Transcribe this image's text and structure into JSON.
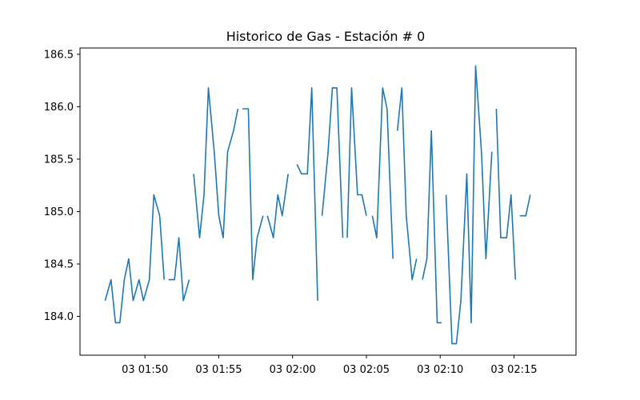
{
  "chart_data": {
    "type": "line",
    "title": "Historico de Gas - Estación # 0",
    "xlabel": "",
    "ylabel": "",
    "x_is_time": true,
    "xlim_minutes": [
      45.6,
      79.2
    ],
    "ylim": [
      183.63,
      186.56
    ],
    "grid": false,
    "legend": "none",
    "line_color": "#1f77b4",
    "x_ticks": [
      {
        "minute": 50,
        "label": "03 01:50"
      },
      {
        "minute": 55,
        "label": "03 01:55"
      },
      {
        "minute": 60,
        "label": "03 02:00"
      },
      {
        "minute": 65,
        "label": "03 02:05"
      },
      {
        "minute": 70,
        "label": "03 02:10"
      },
      {
        "minute": 75,
        "label": "03 02:15"
      }
    ],
    "y_ticks": [
      184.0,
      184.5,
      185.0,
      185.5,
      186.0,
      186.5
    ],
    "series": [
      {
        "segments": [
          [
            [
              47.3,
              184.15
            ],
            [
              47.7,
              184.35
            ],
            [
              48.0,
              183.94
            ],
            [
              48.3,
              183.94
            ],
            [
              48.6,
              184.35
            ],
            [
              48.9,
              184.55
            ],
            [
              49.2,
              184.15
            ],
            [
              49.6,
              184.35
            ],
            [
              49.9,
              184.15
            ],
            [
              50.3,
              184.35
            ],
            [
              50.6,
              185.16
            ],
            [
              51.0,
              184.96
            ],
            [
              51.3,
              184.35
            ]
          ],
          [
            [
              51.6,
              184.35
            ],
            [
              52.0,
              184.35
            ],
            [
              52.3,
              184.75
            ],
            [
              52.6,
              184.15
            ],
            [
              53.0,
              184.35
            ]
          ],
          [
            [
              53.3,
              185.36
            ],
            [
              53.7,
              184.75
            ],
            [
              54.0,
              185.16
            ],
            [
              54.3,
              186.18
            ],
            [
              54.7,
              185.56
            ],
            [
              55.0,
              184.96
            ],
            [
              55.3,
              184.75
            ],
            [
              55.6,
              185.57
            ],
            [
              56.0,
              185.77
            ],
            [
              56.3,
              185.98
            ]
          ],
          [
            [
              56.6,
              185.98
            ],
            [
              57.0,
              185.98
            ],
            [
              57.3,
              184.35
            ],
            [
              57.6,
              184.75
            ],
            [
              58.0,
              184.96
            ]
          ],
          [
            [
              58.3,
              184.96
            ],
            [
              58.7,
              184.75
            ],
            [
              59.0,
              185.16
            ],
            [
              59.3,
              184.96
            ],
            [
              59.7,
              185.36
            ]
          ],
          [
            [
              60.3,
              185.45
            ],
            [
              60.6,
              185.36
            ],
            [
              61.0,
              185.36
            ],
            [
              61.3,
              186.18
            ],
            [
              61.7,
              184.15
            ]
          ],
          [
            [
              62.0,
              184.96
            ],
            [
              62.4,
              185.56
            ],
            [
              62.7,
              186.18
            ],
            [
              63.0,
              186.18
            ],
            [
              63.4,
              184.75
            ]
          ],
          [
            [
              63.7,
              184.75
            ],
            [
              64.0,
              186.18
            ],
            [
              64.4,
              185.16
            ],
            [
              64.7,
              185.16
            ],
            [
              65.0,
              184.96
            ]
          ],
          [
            [
              65.4,
              184.96
            ],
            [
              65.7,
              184.75
            ],
            [
              66.1,
              186.18
            ],
            [
              66.4,
              185.98
            ],
            [
              66.8,
              184.55
            ]
          ],
          [
            [
              67.1,
              185.77
            ],
            [
              67.4,
              186.18
            ],
            [
              67.7,
              184.96
            ],
            [
              68.1,
              184.35
            ],
            [
              68.4,
              184.55
            ]
          ],
          [
            [
              68.8,
              184.35
            ],
            [
              69.1,
              184.55
            ],
            [
              69.4,
              185.77
            ],
            [
              69.8,
              183.94
            ],
            [
              70.1,
              183.94
            ]
          ],
          [
            [
              70.4,
              185.16
            ],
            [
              70.8,
              183.74
            ],
            [
              71.1,
              183.74
            ],
            [
              71.4,
              184.15
            ],
            [
              71.8,
              185.36
            ],
            [
              72.1,
              183.94
            ],
            [
              72.4,
              186.39
            ],
            [
              72.8,
              185.56
            ],
            [
              73.1,
              184.55
            ],
            [
              73.5,
              185.57
            ]
          ],
          [
            [
              73.8,
              185.98
            ],
            [
              74.1,
              184.75
            ],
            [
              74.5,
              184.75
            ],
            [
              74.8,
              185.16
            ],
            [
              75.1,
              184.35
            ]
          ],
          [
            [
              75.4,
              184.96
            ],
            [
              75.8,
              184.96
            ],
            [
              76.1,
              185.16
            ]
          ]
        ]
      }
    ]
  }
}
